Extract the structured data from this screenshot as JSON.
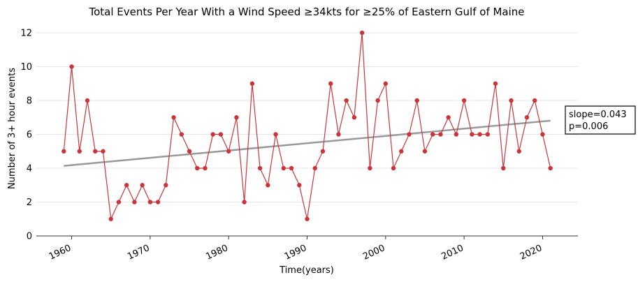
{
  "chart_data": {
    "type": "line",
    "title": "Total Events Per Year With a Wind Speed ≥34kts for ≥25% of Eastern Gulf of Maine",
    "xlabel": "Time(years)",
    "ylabel": "Number of 3+ hour events",
    "xlim": [
      1955.5,
      2024.5
    ],
    "ylim": [
      0,
      12.7
    ],
    "x_ticks": [
      "1960",
      "1970",
      "1980",
      "1990",
      "2000",
      "2010",
      "2020"
    ],
    "y_ticks": [
      "0",
      "2",
      "4",
      "6",
      "8",
      "10",
      "12"
    ],
    "grid": "horizontal",
    "series": [
      {
        "color": "#c8363b",
        "x": [
          1959,
          1960,
          1961,
          1962,
          1963,
          1964,
          1965,
          1966,
          1967,
          1968,
          1969,
          1970,
          1971,
          1972,
          1973,
          1974,
          1975,
          1976,
          1977,
          1978,
          1979,
          1980,
          1981,
          1982,
          1983,
          1984,
          1985,
          1986,
          1987,
          1988,
          1989,
          1990,
          1991,
          1992,
          1993,
          1994,
          1995,
          1996,
          1997,
          1998,
          1999,
          2000,
          2001,
          2002,
          2003,
          2004,
          2005,
          2006,
          2007,
          2008,
          2009,
          2010,
          2011,
          2012,
          2013,
          2014,
          2015,
          2016,
          2017,
          2018,
          2019,
          2020,
          2021
        ],
        "values": [
          5,
          10,
          5,
          8,
          5,
          5,
          1,
          2,
          3,
          2,
          3,
          2,
          2,
          3,
          7,
          6,
          5,
          4,
          4,
          6,
          6,
          5,
          7,
          2,
          9,
          4,
          3,
          6,
          4,
          4,
          3,
          1,
          4,
          5,
          9,
          6,
          8,
          7,
          12,
          4,
          8,
          9,
          4,
          5,
          6,
          8,
          5,
          6,
          6,
          7,
          6,
          8,
          6,
          6,
          6,
          9,
          4,
          8,
          5,
          7,
          8,
          6,
          4
        ]
      }
    ],
    "trend": {
      "color": "#999999",
      "x": [
        1959,
        2021
      ],
      "values": [
        4.14,
        6.81
      ]
    },
    "annotation": {
      "line1": "slope=0.043",
      "line2": "p=0.006"
    }
  }
}
